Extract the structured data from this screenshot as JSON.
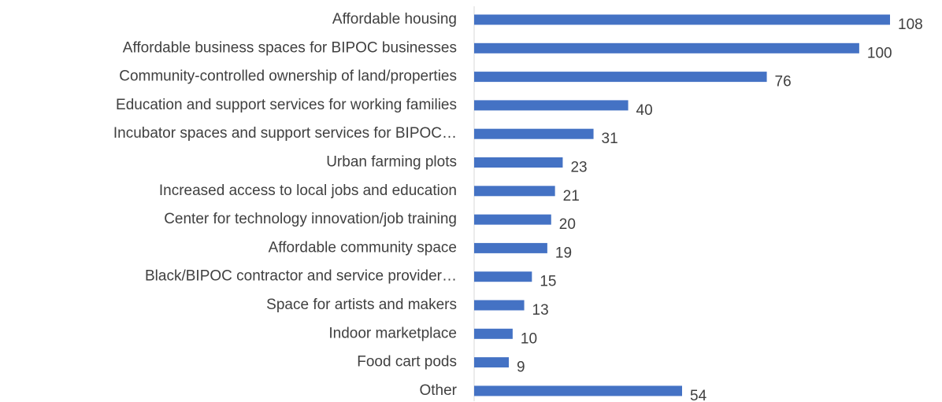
{
  "chart_data": {
    "type": "bar",
    "orientation": "horizontal",
    "categories": [
      "Affordable housing",
      "Affordable business spaces for BIPOC businesses",
      "Community-controlled ownership of land/properties",
      "Education and support services for working families",
      "Incubator spaces and support services for BIPOC…",
      "Urban farming plots",
      "Increased access to local jobs and education",
      "Center for technology innovation/job training",
      "Affordable community space",
      "Black/BIPOC contractor and service provider…",
      "Space for artists and makers",
      "Indoor marketplace",
      "Food cart pods",
      "Other"
    ],
    "values": [
      108,
      100,
      76,
      40,
      31,
      23,
      21,
      20,
      19,
      15,
      13,
      10,
      9,
      54
    ],
    "color": "#4472c4"
  }
}
